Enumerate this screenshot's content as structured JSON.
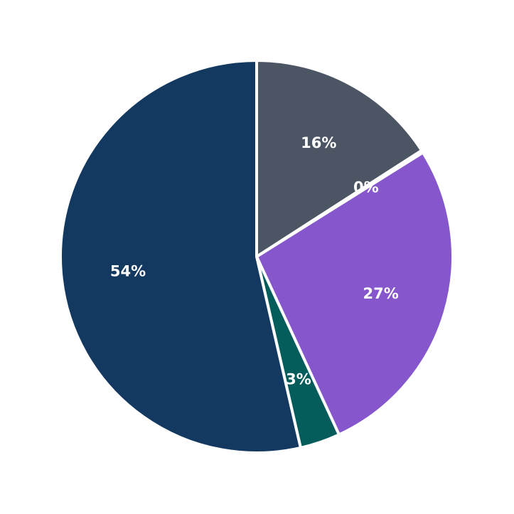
{
  "chart_data": {
    "type": "pie",
    "title": "",
    "start_angle_deg": 90,
    "direction": "clockwise",
    "slices": [
      {
        "label": "",
        "value": 15.9,
        "display": "16%",
        "color": "#4b5563"
      },
      {
        "label": "",
        "value": 0.2,
        "display": "0%",
        "color": "#4b5563"
      },
      {
        "label": "",
        "value": 27.0,
        "display": "27%",
        "color": "#8657cc"
      },
      {
        "label": "",
        "value": 3.3,
        "display": "3%",
        "color": "#045d5b"
      },
      {
        "label": "",
        "value": 53.6,
        "display": "54%",
        "color": "#143960"
      }
    ],
    "legend": null,
    "edge_color": "#ffffff"
  }
}
